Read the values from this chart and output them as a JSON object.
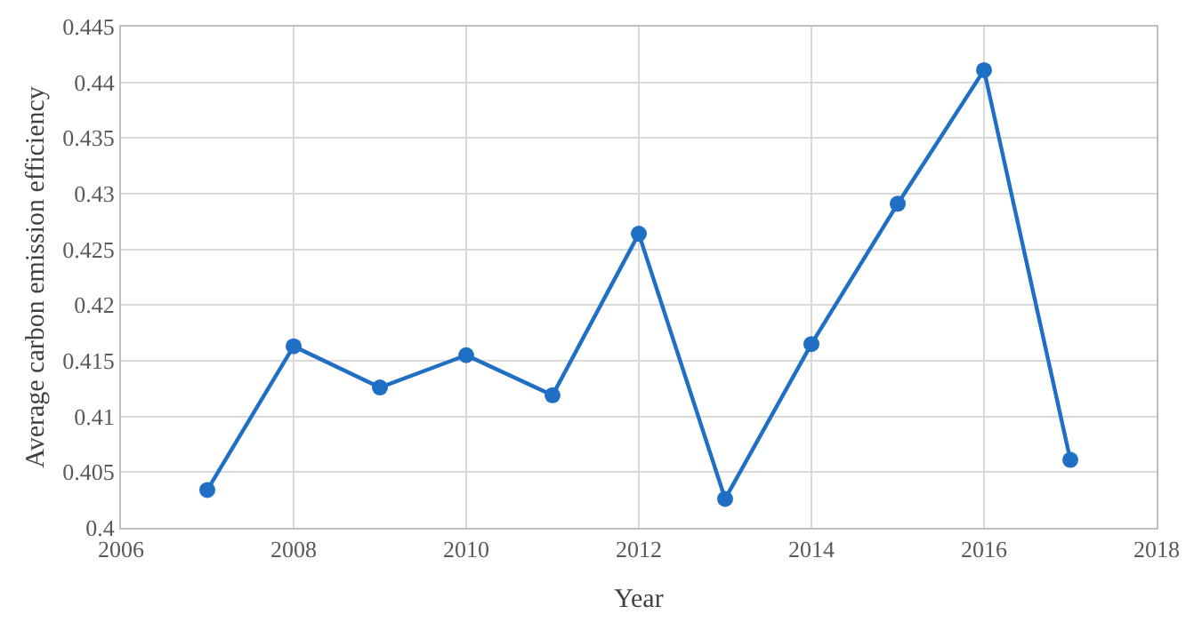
{
  "chart_data": {
    "type": "line",
    "xlabel": "Year",
    "ylabel": "Average carbon emission efficiency",
    "x": [
      2007,
      2008,
      2009,
      2010,
      2011,
      2012,
      2013,
      2014,
      2015,
      2016,
      2017
    ],
    "series": [
      {
        "color": "#1f6fc5",
        "values": [
          0.4034,
          0.4163,
          0.4126,
          0.4155,
          0.4119,
          0.4264,
          0.4026,
          0.4165,
          0.4291,
          0.4411,
          0.4061
        ]
      }
    ],
    "xlim": [
      2006,
      2018
    ],
    "xticks": [
      2006,
      2008,
      2010,
      2012,
      2014,
      2016,
      2018
    ],
    "ylim": [
      0.4,
      0.445
    ],
    "yticks": [
      0.4,
      0.405,
      0.41,
      0.415,
      0.42,
      0.425,
      0.43,
      0.435,
      0.44,
      0.445
    ],
    "grid": true,
    "marker": "circle",
    "line_style": "solid"
  }
}
